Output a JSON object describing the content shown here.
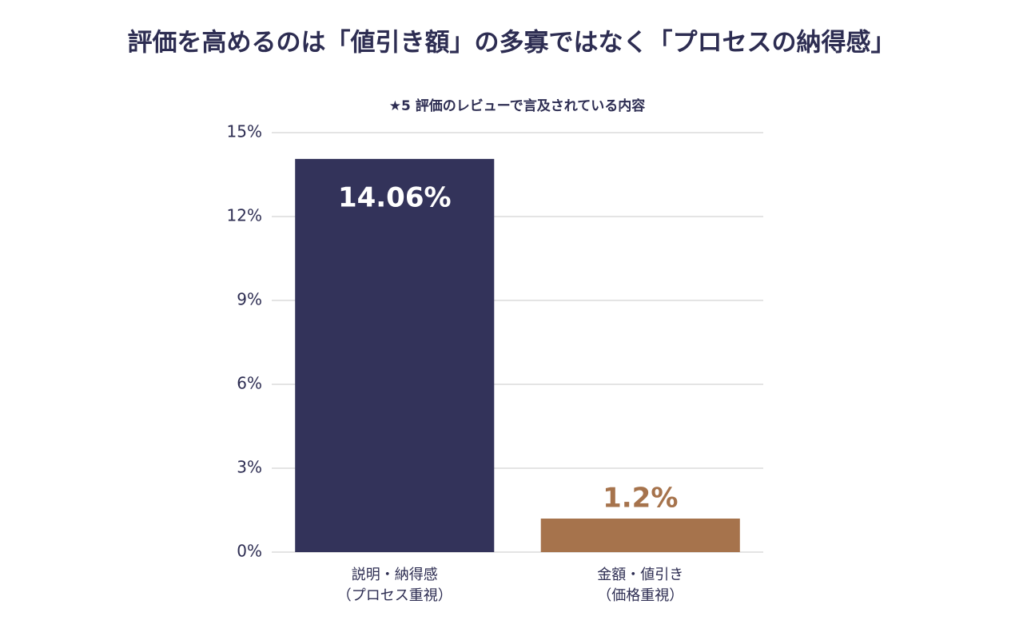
{
  "chart_data": {
    "type": "bar",
    "title": "評価を高めるのは「値引き額」の多寡ではなく「プロセスの納得感」",
    "subtitle": "★5 評価のレビューで言及されている内容",
    "categories": [
      [
        "説明・納得感",
        "（プロセス重視）"
      ],
      [
        "金額・値引き",
        "（価格重視）"
      ]
    ],
    "values": [
      14.06,
      1.2
    ],
    "value_labels": [
      "14.06%",
      "1.2%"
    ],
    "colors": [
      "#33335a",
      "#a6734c"
    ],
    "ylim": [
      0,
      15
    ],
    "yticks": [
      {
        "value": 0,
        "label": "0%"
      },
      {
        "value": 3,
        "label": "3%"
      },
      {
        "value": 6,
        "label": "6%"
      },
      {
        "value": 9,
        "label": "9%"
      },
      {
        "value": 12,
        "label": "12%"
      },
      {
        "value": 15,
        "label": "15%"
      }
    ],
    "grid": true
  }
}
